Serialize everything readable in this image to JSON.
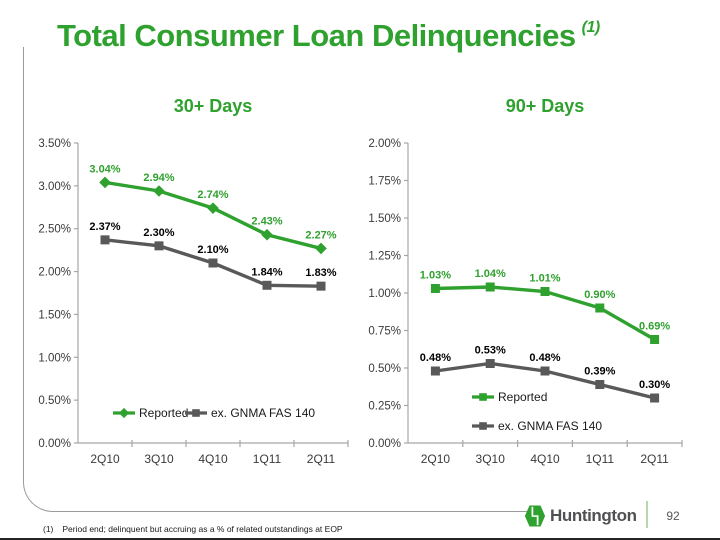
{
  "header": {
    "title": "Total Consumer Loan Delinquencies",
    "superscript": "(1)"
  },
  "colors": {
    "brand_green": "#2fa12e",
    "series_gray": "#595959",
    "axis_gray": "#a6a6a6",
    "tick_text": "#3a3a3a",
    "label_black": "#000000",
    "legend_text": "#1a1a1a",
    "divider_green": "#b7d8ae",
    "wordmark_gray": "#515153",
    "frame_gray": "#9b9b9b"
  },
  "chart_data": [
    {
      "type": "line",
      "title": "30+ Days",
      "categories": [
        "2Q10",
        "3Q10",
        "4Q10",
        "1Q11",
        "2Q11"
      ],
      "ylim": [
        0,
        3.5
      ],
      "y_ticks": [
        "3.50%",
        "3.00%",
        "2.50%",
        "2.00%",
        "1.50%",
        "1.00%",
        "0.50%",
        "0.00%"
      ],
      "grid": false,
      "legend_position": "inside-bottom single row",
      "series": [
        {
          "name": "Reported",
          "color": "#2fa12e",
          "label_color": "#2fa12e",
          "marker": "diamond",
          "values": [
            3.04,
            2.94,
            2.74,
            2.43,
            2.27
          ],
          "labels": [
            "3.04%",
            "2.94%",
            "2.74%",
            "2.43%",
            "2.27%"
          ]
        },
        {
          "name": "ex. GNMA FAS 140",
          "color": "#595959",
          "label_color": "#000000",
          "marker": "square",
          "values": [
            2.37,
            2.3,
            2.1,
            1.84,
            1.83
          ],
          "labels": [
            "2.37%",
            "2.30%",
            "2.10%",
            "1.84%",
            "1.83%"
          ]
        }
      ]
    },
    {
      "type": "line",
      "title": "90+ Days",
      "categories": [
        "2Q10",
        "3Q10",
        "4Q10",
        "1Q11",
        "2Q11"
      ],
      "ylim": [
        0,
        2.0
      ],
      "y_ticks": [
        "2.00%",
        "1.75%",
        "1.50%",
        "1.25%",
        "1.00%",
        "0.75%",
        "0.50%",
        "0.25%",
        "0.00%"
      ],
      "grid": false,
      "legend_position": "inside-bottom stacked",
      "series": [
        {
          "name": "Reported",
          "color": "#2fa12e",
          "label_color": "#2fa12e",
          "marker": "square",
          "values": [
            1.03,
            1.04,
            1.01,
            0.9,
            0.69
          ],
          "labels": [
            "1.03%",
            "1.04%",
            "1.01%",
            "0.90%",
            "0.69%"
          ]
        },
        {
          "name": "ex. GNMA FAS 140",
          "color": "#595959",
          "label_color": "#000000",
          "marker": "square",
          "values": [
            0.48,
            0.53,
            0.48,
            0.39,
            0.3
          ],
          "labels": [
            "0.48%",
            "0.53%",
            "0.48%",
            "0.39%",
            "0.30%"
          ]
        }
      ]
    }
  ],
  "footer": {
    "footnote_ref": "(1)",
    "footnote_text": "Period end; delinquent but accruing as a % of related outstandings at EOP",
    "brand": "Huntington",
    "page": "92"
  }
}
